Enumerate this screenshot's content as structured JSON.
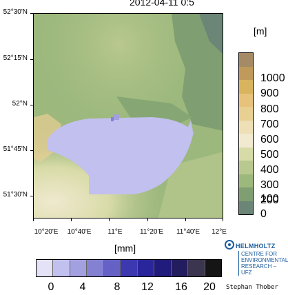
{
  "title": "2012-04-11 0:5",
  "map": {
    "y_labels": [
      "52°30'N",
      "52°15'N",
      "52°N",
      "51°45'N",
      "51°30'N"
    ],
    "x_labels": [
      "10°20'E",
      "10°40'E",
      "11°E",
      "11°20'E",
      "11°40'E",
      "12°E"
    ]
  },
  "elevation_legend": {
    "unit": "[m]",
    "labels": [
      "1000",
      "900",
      "800",
      "700",
      "600",
      "500",
      "400",
      "300",
      "200",
      "100",
      "0"
    ],
    "colors": [
      "#a58a66",
      "#bf9a5b",
      "#d9b45f",
      "#e6c27b",
      "#e8cf92",
      "#eedfb6",
      "#f1ead1",
      "#d6dba8",
      "#b9c88e",
      "#9cb87d",
      "#7f9f72",
      "#6b8677"
    ]
  },
  "precip_legend": {
    "unit": "[mm]",
    "labels": [
      "0",
      "4",
      "8",
      "12",
      "16",
      "20"
    ],
    "colors": [
      "#e4e2f6",
      "#c2c0ee",
      "#a3a0e0",
      "#8481d3",
      "#6662c5",
      "#3c38b0",
      "#2a259a",
      "#201b7c",
      "#231c5e",
      "#3b354f",
      "#151515"
    ]
  },
  "logo": {
    "name": "HELMHOLTZ",
    "lines": [
      "CENTRE FOR",
      "ENVIRONMENTAL",
      "RESEARCH – UFZ"
    ]
  },
  "credit": "Stephan Thober"
}
